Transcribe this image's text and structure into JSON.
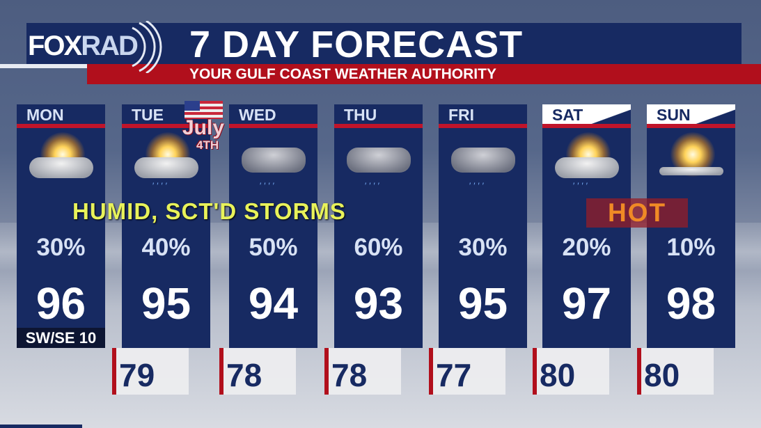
{
  "header": {
    "logo": "FOX",
    "logo_suffix": "RAD",
    "title": "7 DAY FORECAST",
    "subtitle": "YOUR GULF COAST WEATHER AUTHORITY"
  },
  "banners": {
    "humid": "HUMID, SCT'D STORMS",
    "hot": "HOT",
    "july": "July",
    "july_day": "4TH"
  },
  "wind": "SW/SE 10",
  "days": [
    {
      "day": "MON",
      "pop": "30%",
      "high": "96",
      "low": "",
      "icon": "partly-sunny-icon"
    },
    {
      "day": "TUE",
      "pop": "40%",
      "high": "95",
      "low": "79",
      "icon": "partly-sunny-showers-icon"
    },
    {
      "day": "WED",
      "pop": "50%",
      "high": "94",
      "low": "78",
      "icon": "storm-icon"
    },
    {
      "day": "THU",
      "pop": "60%",
      "high": "93",
      "low": "78",
      "icon": "storm-icon"
    },
    {
      "day": "FRI",
      "pop": "30%",
      "high": "95",
      "low": "77",
      "icon": "storm-icon"
    },
    {
      "day": "SAT",
      "pop": "20%",
      "high": "97",
      "low": "80",
      "icon": "partly-sunny-showers-icon"
    },
    {
      "day": "SUN",
      "pop": "10%",
      "high": "98",
      "low": "80",
      "icon": "mostly-sunny-icon"
    }
  ],
  "colors": {
    "navy": "#172a62",
    "red": "#b10f1c",
    "humid_text": "#e8f25a",
    "hot_text": "#f08a25"
  }
}
